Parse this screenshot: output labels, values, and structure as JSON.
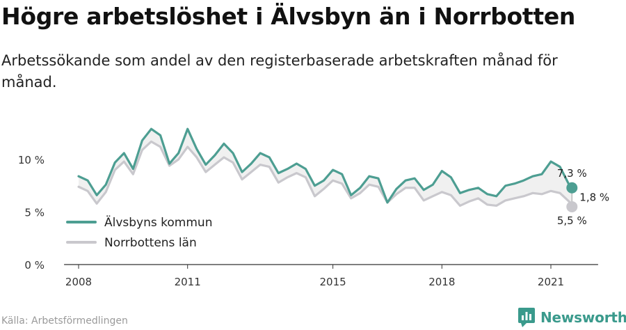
{
  "title": "Högre arbetslöshet i Älvsbyn än i Norrbotten",
  "subtitle": "Arbetssökande som andel av den registerbaserade arbetskraften månad för månad.",
  "source": "Källa: Arbetsförmedlingen",
  "brand": {
    "name": "Newsworthy",
    "icon": "newsworthy-logo-icon"
  },
  "colors": {
    "alvsbyn": "#4d9e92",
    "norrbotten": "#c9c8cd",
    "gap_fill": "#f0f0f0"
  },
  "chart_data": {
    "type": "line",
    "title": "Högre arbetslöshet i Älvsbyn än i Norrbotten",
    "ylim": [
      0,
      13
    ],
    "yticks": [
      0,
      5,
      10
    ],
    "ytick_labels": [
      "0 %",
      "5 %",
      "10 %"
    ],
    "xlim": [
      2007.6,
      2022.3
    ],
    "xticks": [
      2008,
      2011,
      2015,
      2018,
      2021
    ],
    "xtick_labels": [
      "2008",
      "2011",
      "2015",
      "2018",
      "2021"
    ],
    "grid": false,
    "legend": "bottom-left",
    "x": [
      2008.0,
      2008.25,
      2008.5,
      2008.75,
      2009.0,
      2009.25,
      2009.5,
      2009.75,
      2010.0,
      2010.25,
      2010.5,
      2010.75,
      2011.0,
      2011.25,
      2011.5,
      2011.75,
      2012.0,
      2012.25,
      2012.5,
      2012.75,
      2013.0,
      2013.25,
      2013.5,
      2013.75,
      2014.0,
      2014.25,
      2014.5,
      2014.75,
      2015.0,
      2015.25,
      2015.5,
      2015.75,
      2016.0,
      2016.25,
      2016.5,
      2016.75,
      2017.0,
      2017.25,
      2017.5,
      2017.75,
      2018.0,
      2018.25,
      2018.5,
      2018.75,
      2019.0,
      2019.25,
      2019.5,
      2019.75,
      2020.0,
      2020.25,
      2020.5,
      2020.75,
      2021.0,
      2021.25,
      2021.5,
      2021.58
    ],
    "series": [
      {
        "name": "Älvsbyns kommun",
        "values": [
          8.4,
          8.0,
          6.6,
          7.6,
          9.7,
          10.6,
          9.1,
          11.8,
          12.9,
          12.3,
          9.6,
          10.6,
          12.9,
          11.0,
          9.5,
          10.4,
          11.5,
          10.6,
          8.8,
          9.6,
          10.6,
          10.2,
          8.7,
          9.1,
          9.6,
          9.1,
          7.5,
          8.0,
          9.0,
          8.6,
          6.6,
          7.3,
          8.4,
          8.2,
          5.9,
          7.2,
          8.0,
          8.2,
          7.1,
          7.6,
          8.9,
          8.3,
          6.8,
          7.1,
          7.3,
          6.7,
          6.5,
          7.5,
          7.7,
          8.0,
          8.4,
          8.6,
          9.8,
          9.3,
          7.6,
          7.3
        ]
      },
      {
        "name": "Norrbottens län",
        "values": [
          7.4,
          7.0,
          5.8,
          6.9,
          9.0,
          9.8,
          8.6,
          10.9,
          11.7,
          11.2,
          9.4,
          10.0,
          11.2,
          10.2,
          8.8,
          9.5,
          10.2,
          9.7,
          8.1,
          8.8,
          9.5,
          9.3,
          7.8,
          8.3,
          8.7,
          8.3,
          6.5,
          7.2,
          8.0,
          7.7,
          6.3,
          6.8,
          7.6,
          7.4,
          5.9,
          6.7,
          7.3,
          7.3,
          6.1,
          6.5,
          6.9,
          6.6,
          5.6,
          6.0,
          6.3,
          5.7,
          5.6,
          6.1,
          6.3,
          6.5,
          6.8,
          6.7,
          7.0,
          6.8,
          6.0,
          5.5
        ]
      }
    ],
    "end_labels": {
      "alvsbyn": "7,3 %",
      "norrbotten": "5,5 %",
      "difference": "1,8 %"
    }
  }
}
